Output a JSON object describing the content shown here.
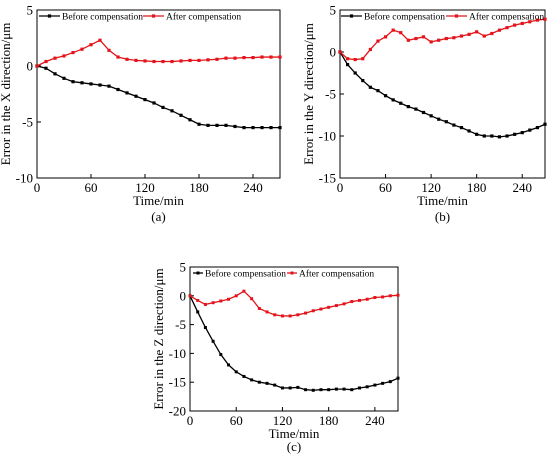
{
  "chart_data": [
    {
      "type": "line",
      "panel_label": "(a)",
      "title": "",
      "xlabel": "Time/min",
      "ylabel": "Error in the X direction/μm",
      "xlim": [
        0,
        270
      ],
      "ylim": [
        -10,
        5
      ],
      "xticks": [
        "0",
        "60",
        "120",
        "180",
        "240"
      ],
      "yticks": [
        "5",
        "0",
        "-5",
        "-10"
      ],
      "series": [
        {
          "name": "Before compensation",
          "color": "#000000",
          "marker": "square",
          "x": [
            0,
            10,
            20,
            30,
            40,
            50,
            60,
            70,
            80,
            90,
            100,
            110,
            120,
            130,
            140,
            150,
            160,
            170,
            180,
            190,
            200,
            210,
            220,
            230,
            240,
            250,
            260,
            270
          ],
          "y": [
            0,
            -0.2,
            -0.7,
            -1.1,
            -1.4,
            -1.5,
            -1.6,
            -1.7,
            -1.8,
            -2.1,
            -2.4,
            -2.7,
            -3.0,
            -3.3,
            -3.7,
            -4.0,
            -4.4,
            -4.8,
            -5.2,
            -5.3,
            -5.3,
            -5.3,
            -5.4,
            -5.5,
            -5.5,
            -5.5,
            -5.5,
            -5.5
          ]
        },
        {
          "name": "After compensation",
          "color": "#e3141b",
          "marker": "square",
          "x": [
            0,
            10,
            20,
            30,
            40,
            50,
            60,
            70,
            80,
            90,
            100,
            110,
            120,
            130,
            140,
            150,
            160,
            170,
            180,
            190,
            200,
            210,
            220,
            230,
            240,
            250,
            260,
            270
          ],
          "y": [
            0,
            0.4,
            0.7,
            0.9,
            1.2,
            1.5,
            1.9,
            2.3,
            1.4,
            0.8,
            0.6,
            0.5,
            0.45,
            0.4,
            0.4,
            0.4,
            0.45,
            0.5,
            0.5,
            0.55,
            0.6,
            0.7,
            0.7,
            0.75,
            0.75,
            0.8,
            0.8,
            0.8
          ]
        }
      ]
    },
    {
      "type": "line",
      "panel_label": "(b)",
      "title": "",
      "xlabel": "Time/min",
      "ylabel": "Error in the Y direction/μm",
      "xlim": [
        0,
        270
      ],
      "ylim": [
        -15,
        5
      ],
      "xticks": [
        "0",
        "60",
        "120",
        "180",
        "240"
      ],
      "yticks": [
        "5",
        "0",
        "-5",
        "-10",
        "-15"
      ],
      "series": [
        {
          "name": "Before compensation",
          "color": "#000000",
          "marker": "square",
          "x": [
            0,
            10,
            20,
            30,
            40,
            50,
            60,
            70,
            80,
            90,
            100,
            110,
            120,
            130,
            140,
            150,
            160,
            170,
            180,
            190,
            200,
            210,
            220,
            230,
            240,
            250,
            260,
            270
          ],
          "y": [
            0,
            -1.5,
            -2.5,
            -3.4,
            -4.2,
            -4.6,
            -5.2,
            -5.7,
            -6.1,
            -6.5,
            -6.8,
            -7.2,
            -7.6,
            -8.0,
            -8.3,
            -8.7,
            -9.0,
            -9.4,
            -9.8,
            -10.0,
            -10.0,
            -10.1,
            -10.0,
            -9.8,
            -9.6,
            -9.3,
            -9.0,
            -8.6
          ]
        },
        {
          "name": "After compensation",
          "color": "#e3141b",
          "marker": "square",
          "x": [
            0,
            10,
            20,
            30,
            40,
            50,
            60,
            70,
            80,
            90,
            100,
            110,
            120,
            130,
            140,
            150,
            160,
            170,
            180,
            190,
            200,
            210,
            220,
            230,
            240,
            250,
            260,
            270
          ],
          "y": [
            0,
            -0.8,
            -0.9,
            -0.8,
            0.3,
            1.3,
            1.8,
            2.6,
            2.3,
            1.4,
            1.6,
            1.8,
            1.2,
            1.4,
            1.6,
            1.7,
            1.9,
            2.1,
            2.4,
            1.9,
            2.2,
            2.6,
            2.9,
            3.2,
            3.4,
            3.6,
            3.8,
            3.9
          ]
        }
      ]
    },
    {
      "type": "line",
      "panel_label": "(c)",
      "title": "",
      "xlabel": "Time/min",
      "ylabel": "Error in the Z direction/μm",
      "xlim": [
        0,
        270
      ],
      "ylim": [
        -20,
        5
      ],
      "xticks": [
        "0",
        "60",
        "120",
        "180",
        "240"
      ],
      "yticks": [
        "5",
        "0",
        "-5",
        "-10",
        "-15",
        "-20"
      ],
      "series": [
        {
          "name": "Before compensation",
          "color": "#000000",
          "marker": "square",
          "x": [
            0,
            10,
            20,
            30,
            40,
            50,
            60,
            70,
            80,
            90,
            100,
            110,
            120,
            130,
            140,
            150,
            160,
            170,
            180,
            190,
            200,
            210,
            220,
            230,
            240,
            250,
            260,
            270
          ],
          "y": [
            0,
            -2.8,
            -5.5,
            -7.9,
            -10.2,
            -12.0,
            -13.2,
            -14.0,
            -14.6,
            -15.0,
            -15.2,
            -15.5,
            -16.0,
            -16.0,
            -15.9,
            -16.3,
            -16.4,
            -16.3,
            -16.3,
            -16.2,
            -16.2,
            -16.3,
            -16.0,
            -15.8,
            -15.5,
            -15.2,
            -14.9,
            -14.3
          ]
        },
        {
          "name": "After compensation",
          "color": "#e3141b",
          "marker": "square",
          "x": [
            0,
            10,
            20,
            30,
            40,
            50,
            60,
            70,
            80,
            90,
            100,
            110,
            120,
            130,
            140,
            150,
            160,
            170,
            180,
            190,
            200,
            210,
            220,
            230,
            240,
            250,
            260,
            270
          ],
          "y": [
            0,
            -0.8,
            -1.5,
            -1.2,
            -0.9,
            -0.6,
            0.0,
            0.8,
            -0.5,
            -2.2,
            -2.8,
            -3.3,
            -3.5,
            -3.5,
            -3.3,
            -3.0,
            -2.6,
            -2.3,
            -2.0,
            -1.7,
            -1.4,
            -1.0,
            -0.8,
            -0.6,
            -0.3,
            -0.2,
            0.0,
            0.1
          ]
        }
      ]
    }
  ]
}
